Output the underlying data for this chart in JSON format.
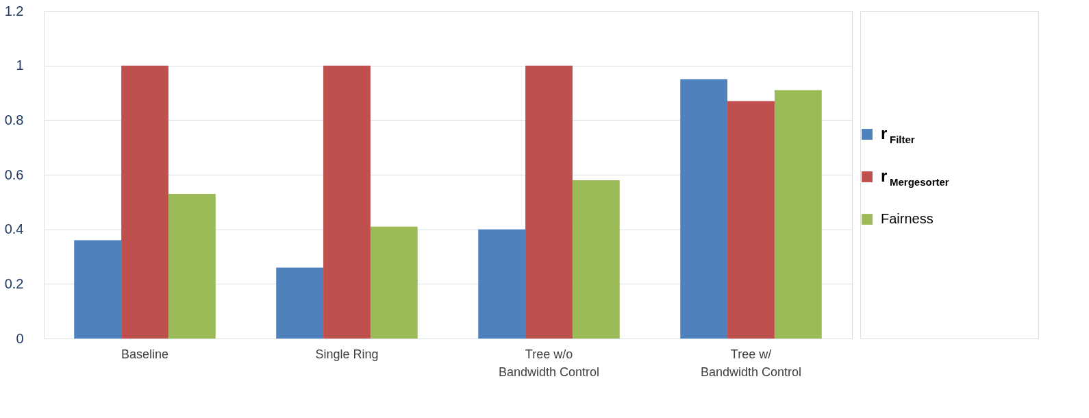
{
  "chart_data": {
    "type": "bar",
    "categories": [
      "Baseline",
      "Single Ring",
      "Tree w/o\nBandwidth Control",
      "Tree w/\nBandwidth Control"
    ],
    "series": [
      {
        "name": "r$_{Filter}$",
        "color": "#4f81bd",
        "values": [
          0.36,
          0.26,
          0.4,
          0.95
        ]
      },
      {
        "name": "r$_{Mergesorter}$",
        "color": "#c0504d",
        "values": [
          1,
          1,
          1,
          0.87
        ]
      },
      {
        "name": "Fairness",
        "color": "#9bbb59",
        "values": [
          0.53,
          0.41,
          0.58,
          0.91
        ]
      }
    ],
    "ylim": [
      0,
      1.2
    ],
    "yticks": [
      0,
      0.2,
      0.4,
      0.6,
      0.8,
      1,
      1.2
    ],
    "grid": "y",
    "legend": "right"
  }
}
